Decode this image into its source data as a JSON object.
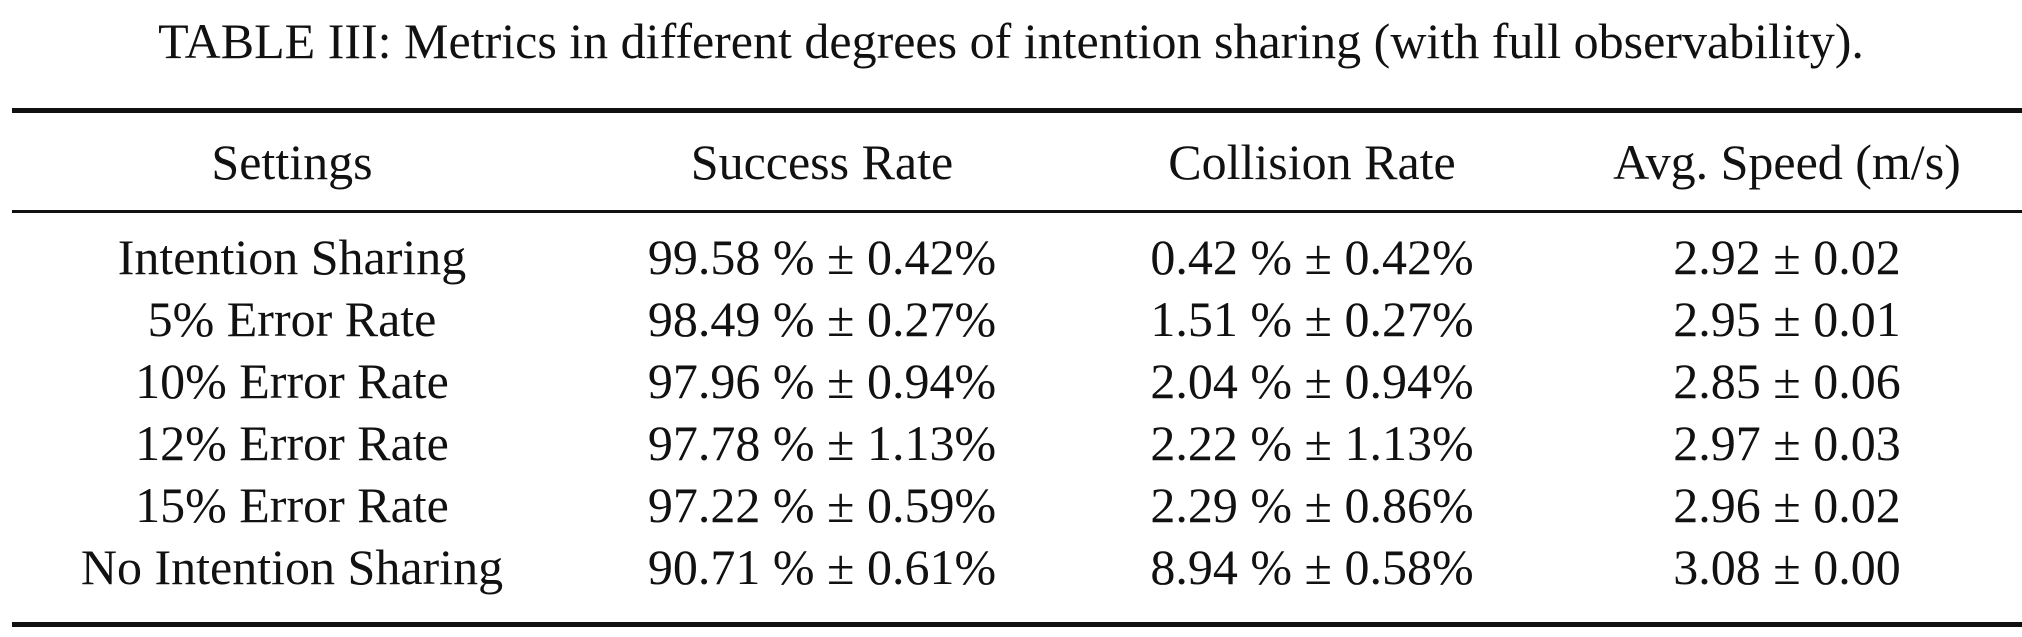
{
  "caption": "TABLE III: Metrics in different degrees of intention sharing (with full observability).",
  "table": {
    "headers": [
      "Settings",
      "Success Rate",
      "Collision Rate",
      "Avg. Speed (m/s)"
    ],
    "rows": [
      [
        "Intention Sharing",
        "99.58 % ± 0.42%",
        "0.42 % ± 0.42%",
        "2.92 ± 0.02"
      ],
      [
        "5% Error Rate",
        "98.49 % ± 0.27%",
        "1.51 % ± 0.27%",
        "2.95 ± 0.01"
      ],
      [
        "10% Error Rate",
        "97.96 % ± 0.94%",
        "2.04 % ± 0.94%",
        "2.85 ± 0.06"
      ],
      [
        "12% Error Rate",
        "97.78 % ± 1.13%",
        "2.22 % ± 1.13%",
        "2.97 ± 0.03"
      ],
      [
        "15% Error Rate",
        "97.22 % ± 0.59%",
        "2.29 % ± 0.86%",
        "2.96 ± 0.02"
      ],
      [
        "No Intention Sharing",
        "90.71 % ± 0.61%",
        "8.94 % ± 0.58%",
        "3.08 ± 0.00"
      ]
    ]
  }
}
